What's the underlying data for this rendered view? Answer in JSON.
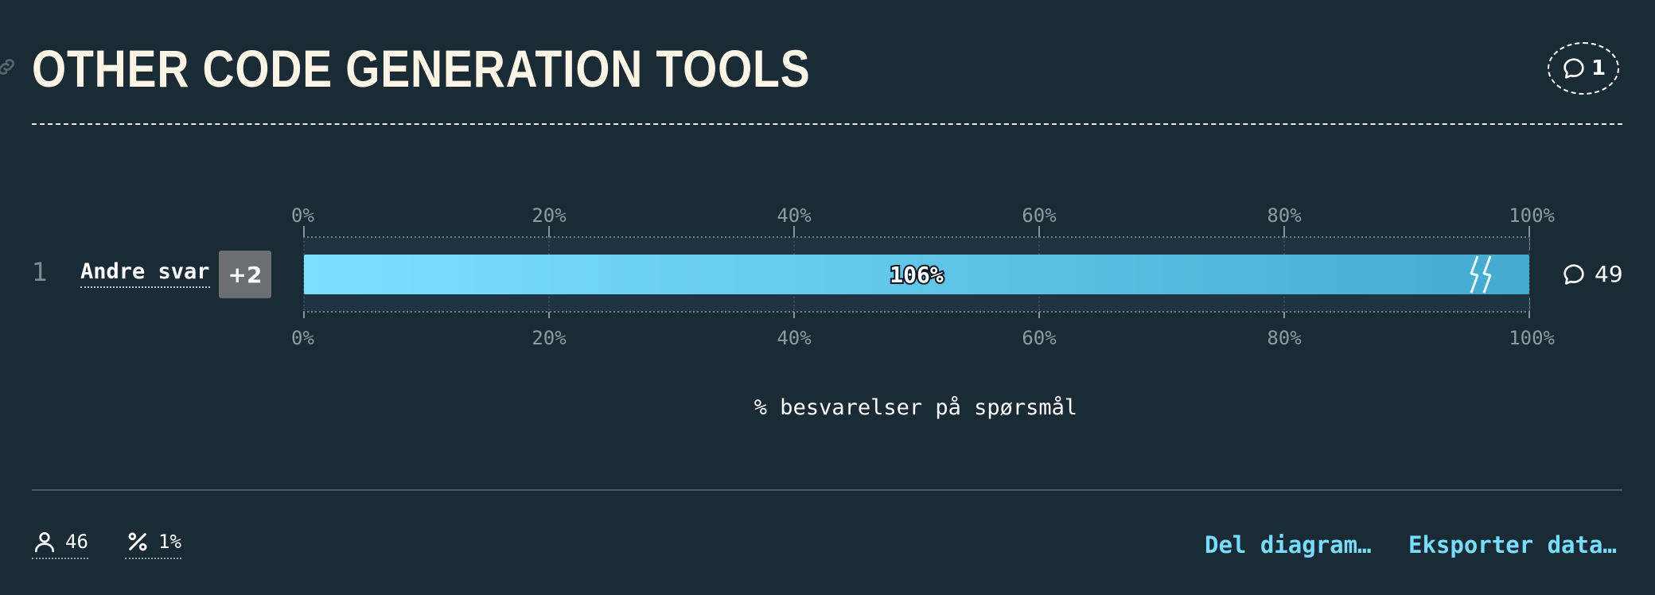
{
  "header": {
    "title": "OTHER CODE GENERATION TOOLS",
    "comment_count": "1"
  },
  "row": {
    "number": "1",
    "label": "Andre svar",
    "more_badge": "+2",
    "comment_count": "49"
  },
  "chart_data": {
    "type": "bar",
    "orientation": "horizontal",
    "categories": [
      "Andre svar"
    ],
    "values": [
      106
    ],
    "value_labels": [
      "106%"
    ],
    "xlim": [
      0,
      100
    ],
    "ticks": [
      "0%",
      "20%",
      "40%",
      "60%",
      "80%",
      "100%"
    ],
    "tick_values": [
      0,
      20,
      40,
      60,
      80,
      100
    ],
    "xlabel": "% besvarelser på spørsmål",
    "overflow_marker": true,
    "colors": {
      "bar_start": "#7ee0ff",
      "bar_end": "#44abcf"
    }
  },
  "footer": {
    "respondents": "46",
    "percent": "1%",
    "share_label": "Del diagram…",
    "export_label": "Eksporter data…"
  },
  "colors": {
    "background": "#1b2b36",
    "title": "#fcf5e6",
    "accent": "#78dcff"
  }
}
